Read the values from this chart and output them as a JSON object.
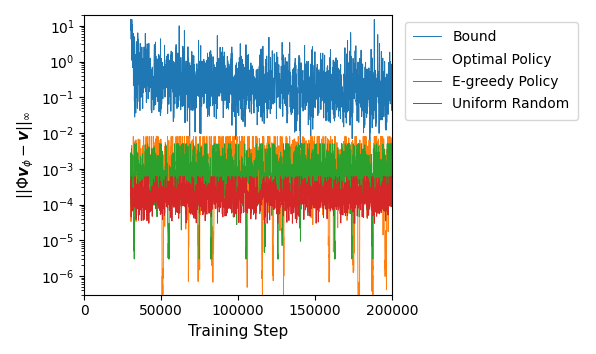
{
  "xlabel": "Training Step",
  "ylabel": "$||\\Phi \\boldsymbol{v}_{\\phi} - \\boldsymbol{v}||_{\\infty}$",
  "xlim": [
    0,
    200000
  ],
  "ylim": [
    3e-07,
    20
  ],
  "legend": [
    "Bound",
    "Optimal Policy",
    "E-greedy Policy",
    "Uniform Random"
  ],
  "colors": [
    "#1f77b4",
    "#ff7f0e",
    "#2ca02c",
    "#d62728"
  ],
  "line_width": 0.7,
  "start_step": 30000,
  "n_steps": 200000,
  "n_points": 2000,
  "seed": 7,
  "xticks": [
    0,
    50000,
    100000,
    150000,
    200000
  ],
  "xticklabels": [
    "0",
    "50000",
    "100000",
    "150000",
    "200000"
  ]
}
